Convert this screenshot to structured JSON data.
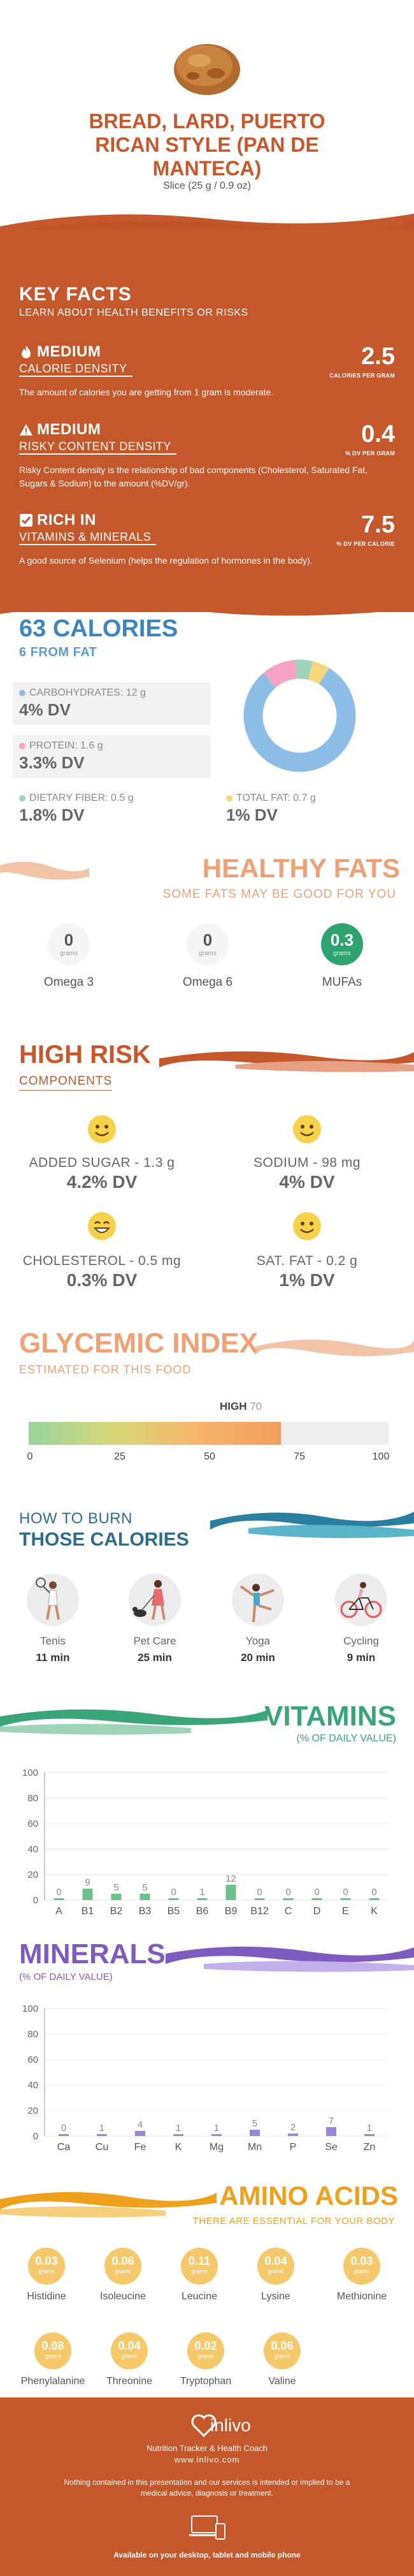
{
  "header": {
    "title_lines": [
      "BREAD, LARD, PUERTO",
      "RICAN STYLE (PAN DE",
      "MANTECA)"
    ],
    "serving": "Slice (25 g / 0.9 oz)"
  },
  "key_facts": {
    "title": "KEY FACTS",
    "subtitle": "LEARN ABOUT HEALTH BENEFITS OR RISKS",
    "facts": [
      {
        "level": "MEDIUM",
        "label": "CALORIE DENSITY",
        "value": "2.5",
        "unit": "CALORIES PER GRAM",
        "icon": "flame-icon",
        "desc": "The amount of calories you are getting from 1 gram is moderate."
      },
      {
        "level": "MEDIUM",
        "label": "RISKY CONTENT DENSITY",
        "value": "0.4",
        "unit": "% DV PER GRAM",
        "icon": "warning-icon",
        "desc": "Risky Content density is the relationship of bad components (Cholesterol, Saturated Fat, Sugars & Sodium) to the amount (%DV/gr)."
      },
      {
        "level": "RICH IN",
        "label": "VITAMINS & MINERALS",
        "value": "7.5",
        "unit": "% DV PER CALORIE",
        "icon": "check-icon",
        "desc": "A good source of Selenium (helps the regulation of hormones in the body)."
      }
    ]
  },
  "calories": {
    "title": "63 CALORIES",
    "subtitle": "6 FROM FAT",
    "nutrients": [
      {
        "name": "CARBOHYDRATES: 12 g",
        "dv": "4% DV",
        "color": "#8bbde6"
      },
      {
        "name": "PROTEIN: 1.6 g",
        "dv": "3.3% DV",
        "color": "#f4a3c4"
      },
      {
        "name": "DIETARY FIBER: 0.5 g",
        "dv": "1.8% DV",
        "color": "#9fd3b8"
      },
      {
        "name": "TOTAL FAT: 0.7 g",
        "dv": "1% DV",
        "color": "#f7d67a"
      }
    ],
    "donut_shares": [
      0.8,
      0.1,
      0.05,
      0.05
    ]
  },
  "healthy_fats": {
    "title": "HEALTHY FATS",
    "subtitle": "SOME FATS MAY BE GOOD FOR YOU",
    "items": [
      {
        "value": "0",
        "unit": "grams",
        "name": "Omega 3"
      },
      {
        "value": "0",
        "unit": "grams",
        "name": "Omega 6"
      },
      {
        "value": "0.3",
        "unit": "grams",
        "name": "MUFAs"
      }
    ]
  },
  "high_risk": {
    "title": "HIGH RISK",
    "subtitle": "COMPONENTS",
    "items": [
      {
        "label": "ADDED SUGAR - 1.3 g",
        "dv": "4.2% DV"
      },
      {
        "label": "SODIUM - 98 mg",
        "dv": "4% DV"
      },
      {
        "label": "CHOLESTEROL - 0.5 mg",
        "dv": "0.3% DV"
      },
      {
        "label": "SAT. FAT - 0.2 g",
        "dv": "1% DV"
      }
    ]
  },
  "glycemic": {
    "title": "GLYCEMIC INDEX",
    "subtitle": "ESTIMATED FOR THIS FOOD",
    "level": "HIGH",
    "value": "70",
    "value_num": 70,
    "ticks": [
      "0",
      "25",
      "50",
      "75",
      "100"
    ]
  },
  "burn": {
    "title1": "HOW TO BURN",
    "title2": "THOSE CALORIES",
    "activities": [
      {
        "name": "Tenis",
        "time": "11 min"
      },
      {
        "name": "Pet Care",
        "time": "25 min"
      },
      {
        "name": "Yoga",
        "time": "20 min"
      },
      {
        "name": "Cycling",
        "time": "9 min"
      }
    ]
  },
  "vitamins": {
    "title": "VITAMINS",
    "subtitle": "(% OF DAILY VALUE)"
  },
  "minerals": {
    "title": "MINERALS",
    "subtitle": "(% OF DAILY VALUE)"
  },
  "chart_data": [
    {
      "type": "bar",
      "title": "VITAMINS",
      "ylabel": "(% OF DAILY VALUE)",
      "categories": [
        "A",
        "B1",
        "B2",
        "B3",
        "B5",
        "B6",
        "B9",
        "B12",
        "C",
        "D",
        "E",
        "K"
      ],
      "values": [
        0,
        9,
        5,
        5,
        0,
        1,
        12,
        0,
        0,
        0,
        0,
        0
      ],
      "yticks": [
        "0",
        "20",
        "40",
        "60",
        "80",
        "100"
      ],
      "ylim": [
        0,
        100
      ],
      "color": "#6cc08b"
    },
    {
      "type": "bar",
      "title": "MINERALS",
      "ylabel": "(% OF DAILY VALUE)",
      "categories": [
        "Ca",
        "Cu",
        "Fe",
        "K",
        "Mg",
        "Mn",
        "P",
        "Se",
        "Zn"
      ],
      "values": [
        0,
        1,
        4,
        1,
        1,
        5,
        2,
        7,
        1
      ],
      "yticks": [
        "0",
        "20",
        "40",
        "60",
        "80",
        "100"
      ],
      "ylim": [
        0,
        100
      ],
      "color": "#9b85d6"
    }
  ],
  "amino": {
    "title": "AMINO ACIDS",
    "subtitle": "THERE ARE ESSENTIAL FOR YOUR BODY",
    "items": [
      {
        "value": "0.03",
        "unit": "grams",
        "name": "Histidine"
      },
      {
        "value": "0.06",
        "unit": "grams",
        "name": "Isoleucine"
      },
      {
        "value": "0.11",
        "unit": "grams",
        "name": "Leucine"
      },
      {
        "value": "0.04",
        "unit": "grams",
        "name": "Lysine"
      },
      {
        "value": "0.03",
        "unit": "grams",
        "name": "Methionine"
      },
      {
        "value": "0.08",
        "unit": "grams",
        "name": "Phenylalanine"
      },
      {
        "value": "0.04",
        "unit": "grams",
        "name": "Threonine"
      },
      {
        "value": "0.02",
        "unit": "grams",
        "name": "Tryptophan"
      },
      {
        "value": "0.06",
        "unit": "grams",
        "name": "Valine"
      }
    ]
  },
  "footer": {
    "brand": "inlivo",
    "tagline": "Nutrition Tracker & Health Coach",
    "url": "www.inlivo.com",
    "disclaimer": "Nothing contained in this presentation and our services is intended or implied to be a medical advice, diagnosis or treatment.",
    "devices": "Available on your desktop, tablet and mobile phone"
  },
  "colors": {
    "primary": "#c5582b",
    "blue": "#3a86c1",
    "green": "#3ba57a",
    "purple": "#7e5bbf",
    "amber": "#f0a11c"
  }
}
